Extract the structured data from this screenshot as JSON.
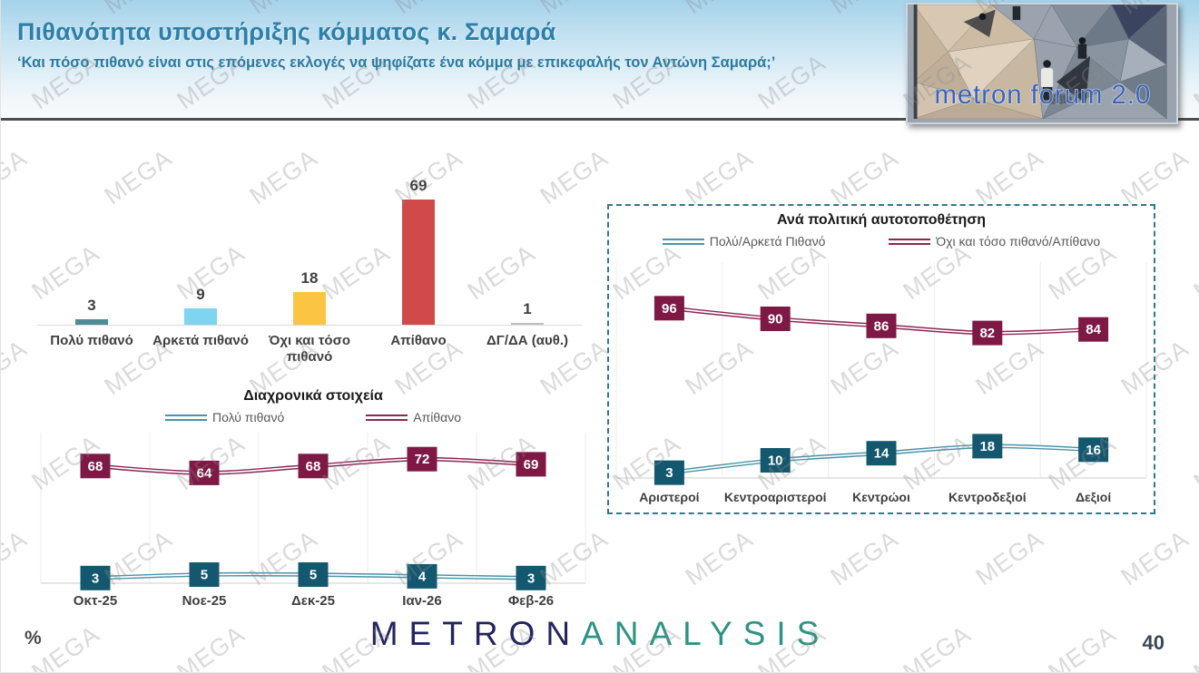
{
  "header": {
    "title": "Πιθανότητα υποστήριξης κόμματος κ. Σαμαρά",
    "subtitle": "‘Και πόσο πιθανό είναι στις επόμενες εκλογές να ψηφίζατε ένα κόμμα με επικεφαλής τον Αντώνη Σαμαρά;’",
    "logo_text": "metron forum 2.0"
  },
  "watermark": {
    "text": "MEGA"
  },
  "footer": {
    "unit_label": "%",
    "page_number": "40",
    "brand": {
      "metron": "METRON",
      "analysis": "ANALYSIS"
    }
  },
  "colors": {
    "header_title": "#2E80A8",
    "teal_line": "#4A93A8",
    "teal_box": "#14586F",
    "maroon_line": "#8C2655",
    "maroon_box": "#7E1945",
    "gridline": "#ECECEC",
    "axis": "#D6D6D6",
    "dashed_border": "#2C7A8C"
  },
  "chart_data": [
    {
      "id": "support-likelihood-bar",
      "type": "bar",
      "title": "",
      "categories": [
        "Πολύ πιθανό",
        "Αρκετά πιθανό",
        "Όχι και τόσο πιθανό",
        "Απίθανο",
        "ΔΓ/ΔΑ (αυθ.)"
      ],
      "values": [
        3,
        9,
        18,
        69,
        1
      ],
      "bar_colors": [
        "#4E8A97",
        "#7ED5F0",
        "#FBC543",
        "#D04A4A",
        "#BFBFBF"
      ],
      "xlabel": "",
      "ylabel": "%",
      "ylim": [
        0,
        80
      ],
      "grid": false,
      "data_labels": true
    },
    {
      "id": "trend-line",
      "type": "line",
      "title": "Διαχρονικά στοιχεία",
      "categories": [
        "Οκτ-25",
        "Νοε-25",
        "Δεκ-25",
        "Ιαν-26",
        "Φεβ-26"
      ],
      "series": [
        {
          "name": "Πολύ πιθανό",
          "values": [
            3,
            5,
            5,
            4,
            3
          ],
          "line_color": "#4A93A8",
          "box_color": "#14586F"
        },
        {
          "name": "Απίθανο",
          "values": [
            68,
            64,
            68,
            72,
            69
          ],
          "line_color": "#8C2655",
          "box_color": "#7E1945"
        }
      ],
      "xlabel": "",
      "ylabel": "%",
      "ylim": [
        0,
        80
      ],
      "legend_position": "top",
      "grid": "vertical",
      "data_labels": "boxed"
    },
    {
      "id": "political-self-placement-line",
      "type": "line",
      "title": "Ανά πολιτική αυτοτοποθέτηση",
      "categories": [
        "Αριστεροί",
        "Κεντροαριστεροί",
        "Κεντρώοι",
        "Κεντροδεξιοί",
        "Δεξιοί"
      ],
      "series": [
        {
          "name": "Πολύ/Αρκετά Πιθανό",
          "values": [
            3,
            10,
            14,
            18,
            16
          ],
          "line_color": "#4A93A8",
          "box_color": "#14586F"
        },
        {
          "name": "Όχι και τόσο πιθανό/Απίθανο",
          "values": [
            96,
            90,
            86,
            82,
            84
          ],
          "line_color": "#8C2655",
          "box_color": "#7E1945"
        }
      ],
      "xlabel": "",
      "ylabel": "%",
      "ylim": [
        0,
        100
      ],
      "legend_position": "top",
      "grid": "vertical",
      "data_labels": "boxed"
    }
  ]
}
